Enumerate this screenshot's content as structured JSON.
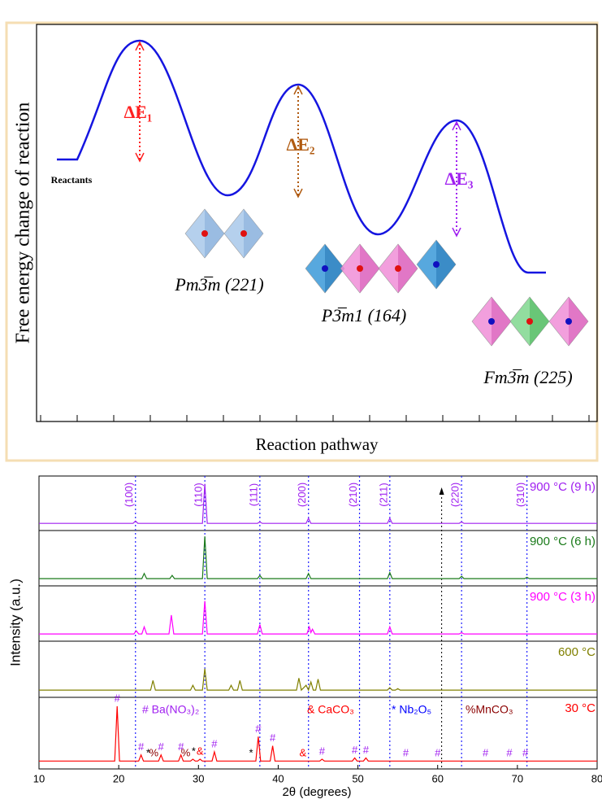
{
  "diagram": {
    "ylabel": "Free energy change of reaction",
    "xlabel": "Reaction pathway",
    "reactants": "Reactants",
    "barriers": [
      "ΔE₁",
      "ΔE₂",
      "ΔE₃"
    ],
    "phases": [
      "Pm3̅m (221)",
      "P3̅m1 (164)",
      "Fm3̅m (225)"
    ]
  },
  "chart_data": {
    "type": "line",
    "xlabel": "2θ (degrees)",
    "ylabel": "Intensity (a.u.)",
    "xlim": [
      10,
      80
    ],
    "xticks": [
      10,
      20,
      30,
      40,
      50,
      60,
      70,
      80
    ],
    "series": [
      {
        "name": "900 °C (9 h)",
        "color": "#a020f0",
        "x": [
          10,
          21.8,
          22.1,
          22.4,
          30.5,
          30.8,
          31.1,
          37.4,
          37.7,
          38,
          43.5,
          43.8,
          44.1,
          53.7,
          54,
          54.3,
          62.7,
          63,
          63.3,
          80
        ],
        "values": [
          5,
          5,
          10,
          5,
          5,
          90,
          5,
          5,
          8,
          5,
          5,
          16,
          5,
          5,
          16,
          5,
          5,
          8,
          5,
          5
        ]
      },
      {
        "name": "900 °C (6 h)",
        "color": "#1a7a1a",
        "x": [
          10,
          22.9,
          23.2,
          23.5,
          26.4,
          26.7,
          27,
          30.5,
          30.8,
          31.1,
          37.4,
          37.7,
          38,
          43.5,
          43.8,
          44.1,
          53.7,
          54,
          54.3,
          62.7,
          63,
          63.3,
          70.9,
          71.2,
          71.5,
          80
        ],
        "values": [
          5,
          5,
          16,
          5,
          5,
          12,
          5,
          5,
          95,
          5,
          5,
          12,
          5,
          5,
          16,
          5,
          5,
          18,
          5,
          5,
          10,
          5,
          5,
          8,
          5,
          5
        ]
      },
      {
        "name": "900 °C (3 h)",
        "color": "#ff00ff",
        "x": [
          10,
          21.9,
          22.2,
          22.5,
          22.9,
          23.2,
          23.5,
          26.3,
          26.6,
          26.9,
          30.5,
          30.8,
          31.1,
          37.4,
          37.7,
          38,
          43.6,
          43.9,
          44.1,
          44.3,
          44.6,
          53.7,
          54,
          54.3,
          62.7,
          63,
          63.3,
          80
        ],
        "values": [
          5,
          5,
          12,
          5,
          5,
          20,
          5,
          5,
          45,
          5,
          5,
          75,
          5,
          5,
          25,
          5,
          5,
          20,
          8,
          15,
          5,
          5,
          20,
          5,
          5,
          8,
          5,
          5
        ]
      },
      {
        "name": "600 °C",
        "color": "#808000",
        "x": [
          10,
          24,
          24.3,
          24.6,
          29,
          29.3,
          29.6,
          30.5,
          30.8,
          31.1,
          33.8,
          34.1,
          34.4,
          34.9,
          35.2,
          35.5,
          42.3,
          42.6,
          42.9,
          43.5,
          43.8,
          44.1,
          44.4,
          44.7,
          45,
          45.3,
          53.7,
          54,
          54.3,
          54.7,
          55,
          55.3,
          80
        ],
        "values": [
          5,
          5,
          25,
          5,
          5,
          15,
          5,
          5,
          50,
          5,
          5,
          15,
          5,
          5,
          25,
          5,
          5,
          30,
          5,
          15,
          5,
          22,
          5,
          5,
          28,
          5,
          5,
          10,
          5,
          5,
          8,
          5,
          5
        ]
      },
      {
        "name": "30 °C",
        "color": "#ff0000",
        "x": [
          10,
          19.5,
          19.8,
          20.1,
          22.5,
          22.8,
          23.1,
          25,
          25.3,
          25.6,
          27.5,
          27.8,
          28.1,
          29,
          29.3,
          29.6,
          29.9,
          30.2,
          30.5,
          31.7,
          32,
          32.3,
          37.2,
          37.5,
          37.8,
          39,
          39.3,
          39.6,
          45.2,
          45.5,
          45.8,
          49.3,
          49.6,
          49.9,
          50.7,
          51,
          51.3,
          80
        ],
        "values": [
          5,
          5,
          95,
          5,
          5,
          15,
          5,
          5,
          15,
          5,
          5,
          15,
          5,
          5,
          8,
          5,
          5,
          8,
          5,
          5,
          20,
          5,
          5,
          45,
          5,
          5,
          30,
          5,
          5,
          8,
          5,
          5,
          10,
          5,
          5,
          10,
          5,
          5
        ]
      }
    ],
    "hkl": [
      {
        "x": 22.1,
        "label": "(100)"
      },
      {
        "x": 30.8,
        "label": "(110)"
      },
      {
        "x": 37.7,
        "label": "(111)"
      },
      {
        "x": 43.8,
        "label": "(200)"
      },
      {
        "x": 50.2,
        "label": "(210)"
      },
      {
        "x": 54,
        "label": "(211)"
      },
      {
        "x": 63,
        "label": "(220)"
      },
      {
        "x": 71.2,
        "label": "(310)"
      }
    ],
    "arrow_x": 60.5,
    "legend_notes": [
      {
        "text": "# Ba(NO₃)₂",
        "color": "#a020f0"
      },
      {
        "text": "& CaCO₃",
        "color": "#ff0000"
      },
      {
        "text": "* Nb₂O₅",
        "color": "#0000ff"
      },
      {
        "text": "%MnCO₃",
        "color": "#8b0000"
      }
    ],
    "markers": [
      {
        "x": 19.8,
        "text": "#",
        "color": "#a020f0"
      },
      {
        "x": 22.8,
        "text": "#",
        "color": "#a020f0"
      },
      {
        "x": 23.7,
        "text": "*",
        "color": "#000000"
      },
      {
        "x": 24.4,
        "text": "%",
        "color": "#8b0000"
      },
      {
        "x": 25.3,
        "text": "#",
        "color": "#a020f0"
      },
      {
        "x": 27.8,
        "text": "#",
        "color": "#a020f0"
      },
      {
        "x": 28.4,
        "text": "%",
        "color": "#8b0000"
      },
      {
        "x": 29.4,
        "text": "*",
        "color": "#000000"
      },
      {
        "x": 30.2,
        "text": "&",
        "color": "#ff0000"
      },
      {
        "x": 32,
        "text": "#",
        "color": "#a020f0"
      },
      {
        "x": 36.6,
        "text": "*",
        "color": "#000000"
      },
      {
        "x": 37.5,
        "text": "#",
        "color": "#a020f0"
      },
      {
        "x": 39.3,
        "text": "#",
        "color": "#a020f0"
      },
      {
        "x": 43.1,
        "text": "&",
        "color": "#ff0000"
      },
      {
        "x": 45.5,
        "text": "#",
        "color": "#a020f0"
      },
      {
        "x": 49.6,
        "text": "#",
        "color": "#a020f0"
      },
      {
        "x": 51,
        "text": "#",
        "color": "#a020f0"
      },
      {
        "x": 56,
        "text": "#",
        "color": "#a020f0"
      },
      {
        "x": 60,
        "text": "#",
        "color": "#a020f0"
      },
      {
        "x": 66,
        "text": "#",
        "color": "#a020f0"
      },
      {
        "x": 69,
        "text": "#",
        "color": "#a020f0"
      },
      {
        "x": 71,
        "text": "#",
        "color": "#a020f0"
      }
    ]
  }
}
